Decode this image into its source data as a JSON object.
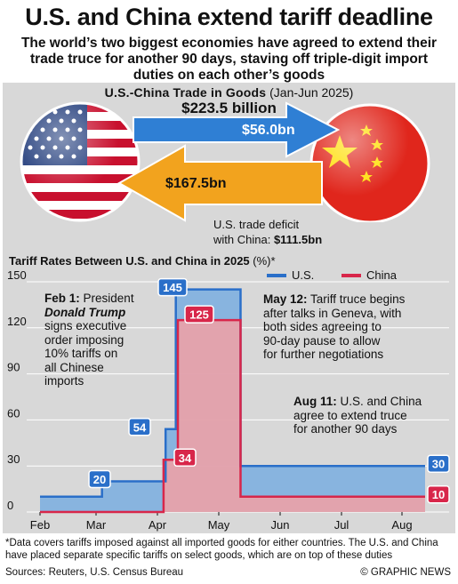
{
  "headline": "U.S. and China extend tariff deadline",
  "subheadline": "The world’s two biggest economies have agreed to extend their trade truce for another 90 days, staving off triple-digit import duties on each other’s goods",
  "trade": {
    "title": "U.S.-China Trade in Goods",
    "period": "(Jan-Jun 2025)",
    "total": "$223.5 billion",
    "us_exports": "$56.0bn",
    "china_exports": "$167.5bn",
    "deficit_line1": "U.S. trade deficit",
    "deficit_line2": "with China:",
    "deficit_value": "$111.5bn"
  },
  "tariff_title_main": "Tariff Rates Between U.S. and China in 2025",
  "tariff_title_suffix": "(%)*",
  "legend": {
    "us": "U.S.",
    "china": "China"
  },
  "annotations": {
    "feb1_date": "Feb 1:",
    "feb1_pre": "President",
    "feb1_name": "Donald Trump",
    "feb1_rest": [
      "signs executive",
      "order imposing",
      "10% tariffs on",
      "all Chinese",
      "imports"
    ],
    "may12_date": "May 12:",
    "may12_lines": [
      "Tariff truce begins",
      "after talks in Geneva, with",
      "both sides agreeing to",
      "90-day pause to allow",
      "for further negotiations"
    ],
    "aug11_date": "Aug 11:",
    "aug11_lines": [
      "U.S. and China",
      "agree to extend truce",
      "for another 90 days"
    ]
  },
  "footnote": "*Data covers tariffs imposed against all imported goods for either countries. The U.S. and China have placed separate specific tariffs on select goods, which are on top of these duties",
  "sources": "Sources: Reuters, U.S. Census Bureau",
  "credit": "© GRAPHIC NEWS",
  "colors": {
    "us": "#2a6fc9",
    "us_fill": "#7fb0e0",
    "china": "#d8264a",
    "china_fill": "#f2a0a4",
    "arrow_blue": "#2f7fd4",
    "arrow_orange": "#f2a31e",
    "panel": "#d8d8d8"
  },
  "chart_data": {
    "type": "area",
    "title": "Tariff Rates Between U.S. and China in 2025 (%)*",
    "x_ticks": [
      "Feb",
      "Mar",
      "Apr",
      "May",
      "Jun",
      "Jul",
      "Aug"
    ],
    "y_ticks": [
      0,
      30,
      60,
      90,
      120,
      150
    ],
    "ylim": [
      0,
      150
    ],
    "series": [
      {
        "name": "U.S.",
        "points": [
          [
            "Feb 1",
            10
          ],
          [
            "Mar 4",
            20
          ],
          [
            "Apr 5",
            54
          ],
          [
            "Apr 10",
            145
          ],
          [
            "May 12",
            30
          ],
          [
            "Aug 11",
            30
          ]
        ],
        "labels": [
          20,
          54,
          145,
          30
        ]
      },
      {
        "name": "China",
        "points": [
          [
            "Feb 1",
            0
          ],
          [
            "Apr 4",
            34
          ],
          [
            "Apr 11",
            125
          ],
          [
            "May 12",
            10
          ],
          [
            "Aug 11",
            10
          ]
        ],
        "labels": [
          34,
          125,
          10
        ]
      }
    ],
    "grid": true
  }
}
